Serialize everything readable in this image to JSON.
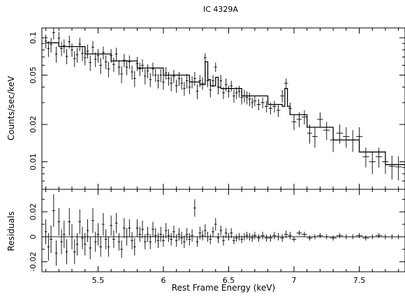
{
  "title": "IC 4329A",
  "chart_data": [
    {
      "panel": "spectrum",
      "type": "scatter",
      "title": "IC 4329A",
      "xlabel": "Rest Frame Energy (keV)",
      "ylabel": "Counts/sec/keV",
      "xlim": [
        5.07,
        7.85
      ],
      "ylim": [
        0.006,
        0.12
      ],
      "yscale": "log",
      "yticks": [
        0.01,
        0.02,
        0.05,
        0.1
      ],
      "ytick_labels": [
        "0.01",
        "0.02",
        "0.05",
        "0.1"
      ],
      "series": [
        {
          "name": "data",
          "x": [
            5.1,
            5.12,
            5.14,
            5.16,
            5.18,
            5.2,
            5.22,
            5.24,
            5.26,
            5.28,
            5.3,
            5.32,
            5.34,
            5.36,
            5.38,
            5.4,
            5.42,
            5.44,
            5.46,
            5.48,
            5.5,
            5.52,
            5.54,
            5.56,
            5.58,
            5.6,
            5.62,
            5.64,
            5.66,
            5.68,
            5.7,
            5.72,
            5.74,
            5.76,
            5.78,
            5.8,
            5.82,
            5.84,
            5.86,
            5.88,
            5.9,
            5.92,
            5.94,
            5.96,
            5.98,
            6.0,
            6.02,
            6.04,
            6.06,
            6.08,
            6.1,
            6.12,
            6.14,
            6.16,
            6.18,
            6.2,
            6.22,
            6.24,
            6.26,
            6.28,
            6.3,
            6.32,
            6.34,
            6.36,
            6.38,
            6.4,
            6.42,
            6.44,
            6.46,
            6.48,
            6.5,
            6.52,
            6.54,
            6.56,
            6.58,
            6.6,
            6.62,
            6.64,
            6.66,
            6.68,
            6.7,
            6.73,
            6.76,
            6.79,
            6.82,
            6.85,
            6.88,
            6.91,
            6.94,
            6.97,
            7.0,
            7.04,
            7.08,
            7.12,
            7.16,
            7.2,
            7.25,
            7.3,
            7.35,
            7.4,
            7.45,
            7.5,
            7.55,
            7.6,
            7.65,
            7.7,
            7.75,
            7.8
          ],
          "y": [
            0.094,
            0.082,
            0.088,
            0.11,
            0.074,
            0.099,
            0.082,
            0.086,
            0.071,
            0.093,
            0.08,
            0.068,
            0.073,
            0.089,
            0.075,
            0.069,
            0.078,
            0.063,
            0.084,
            0.067,
            0.072,
            0.06,
            0.076,
            0.064,
            0.056,
            0.072,
            0.061,
            0.074,
            0.058,
            0.051,
            0.066,
            0.058,
            0.064,
            0.053,
            0.047,
            0.062,
            0.056,
            0.06,
            0.049,
            0.054,
            0.046,
            0.056,
            0.05,
            0.045,
            0.05,
            0.044,
            0.052,
            0.047,
            0.043,
            0.049,
            0.041,
            0.047,
            0.043,
            0.039,
            0.045,
            0.04,
            0.044,
            0.047,
            0.037,
            0.045,
            0.043,
            0.069,
            0.045,
            0.038,
            0.045,
            0.058,
            0.04,
            0.045,
            0.036,
            0.042,
            0.037,
            0.041,
            0.034,
            0.036,
            0.037,
            0.033,
            0.034,
            0.033,
            0.032,
            0.03,
            0.031,
            0.029,
            0.03,
            0.028,
            0.027,
            0.028,
            0.026,
            0.034,
            0.043,
            0.027,
            0.021,
            0.022,
            0.023,
            0.017,
            0.016,
            0.022,
            0.018,
            0.015,
            0.017,
            0.016,
            0.015,
            0.016,
            0.011,
            0.01,
            0.011,
            0.01,
            0.0092,
            0.0091
          ],
          "yerr": [
            0.012,
            0.012,
            0.012,
            0.013,
            0.011,
            0.012,
            0.011,
            0.011,
            0.01,
            0.011,
            0.01,
            0.01,
            0.01,
            0.011,
            0.01,
            0.009,
            0.01,
            0.009,
            0.01,
            0.009,
            0.009,
            0.009,
            0.009,
            0.008,
            0.008,
            0.009,
            0.008,
            0.009,
            0.008,
            0.008,
            0.008,
            0.008,
            0.008,
            0.007,
            0.007,
            0.008,
            0.007,
            0.007,
            0.007,
            0.007,
            0.006,
            0.007,
            0.006,
            0.006,
            0.006,
            0.006,
            0.006,
            0.006,
            0.006,
            0.006,
            0.005,
            0.006,
            0.005,
            0.005,
            0.006,
            0.005,
            0.005,
            0.006,
            0.005,
            0.005,
            0.005,
            0.006,
            0.005,
            0.005,
            0.005,
            0.005,
            0.005,
            0.005,
            0.004,
            0.005,
            0.004,
            0.004,
            0.004,
            0.004,
            0.004,
            0.004,
            0.004,
            0.004,
            0.004,
            0.003,
            0.003,
            0.003,
            0.003,
            0.003,
            0.003,
            0.003,
            0.003,
            0.004,
            0.004,
            0.003,
            0.003,
            0.003,
            0.003,
            0.003,
            0.003,
            0.003,
            0.003,
            0.003,
            0.003,
            0.003,
            0.003,
            0.003,
            0.002,
            0.002,
            0.002,
            0.002,
            0.002,
            0.002
          ]
        }
      ],
      "model_line": {
        "x": [
          5.1,
          5.2,
          5.4,
          5.6,
          5.8,
          6.0,
          6.2,
          6.28,
          6.3,
          6.32,
          6.34,
          6.36,
          6.38,
          6.4,
          6.42,
          6.44,
          6.6,
          6.8,
          6.91,
          6.93,
          6.95,
          6.97,
          7.1,
          7.3,
          7.5,
          7.7,
          7.85
        ],
        "y": [
          0.091,
          0.085,
          0.074,
          0.065,
          0.057,
          0.05,
          0.044,
          0.042,
          0.042,
          0.064,
          0.046,
          0.041,
          0.041,
          0.048,
          0.04,
          0.039,
          0.034,
          0.029,
          0.028,
          0.039,
          0.028,
          0.024,
          0.019,
          0.015,
          0.012,
          0.0095,
          0.0085
        ]
      }
    },
    {
      "panel": "residuals",
      "type": "scatter",
      "xlabel": "Rest Frame Energy (keV)",
      "ylabel": "Residuals",
      "xlim": [
        5.07,
        7.85
      ],
      "ylim": [
        -0.028,
        0.038
      ],
      "xticks": [
        5.5,
        6,
        6.5,
        7,
        7.5
      ],
      "xtick_labels": [
        "5.5",
        "6",
        "6.5",
        "7",
        "7.5"
      ],
      "yticks": [
        -0.02,
        0,
        0.02
      ],
      "ytick_labels": [
        "-0.02",
        "0",
        "0.02"
      ],
      "zero_line": true,
      "series": [
        {
          "name": "residuals",
          "x": [
            5.1,
            5.12,
            5.14,
            5.16,
            5.18,
            5.2,
            5.22,
            5.24,
            5.26,
            5.28,
            5.3,
            5.32,
            5.34,
            5.36,
            5.38,
            5.4,
            5.42,
            5.44,
            5.46,
            5.48,
            5.5,
            5.52,
            5.54,
            5.56,
            5.58,
            5.6,
            5.62,
            5.64,
            5.66,
            5.68,
            5.7,
            5.72,
            5.74,
            5.76,
            5.78,
            5.8,
            5.82,
            5.84,
            5.86,
            5.88,
            5.9,
            5.92,
            5.94,
            5.96,
            5.98,
            6.0,
            6.02,
            6.04,
            6.06,
            6.08,
            6.1,
            6.12,
            6.14,
            6.16,
            6.18,
            6.2,
            6.22,
            6.24,
            6.26,
            6.28,
            6.3,
            6.32,
            6.34,
            6.36,
            6.38,
            6.4,
            6.42,
            6.44,
            6.46,
            6.48,
            6.5,
            6.52,
            6.54,
            6.56,
            6.58,
            6.6,
            6.62,
            6.64,
            6.66,
            6.68,
            6.7,
            6.73,
            6.76,
            6.79,
            6.82,
            6.85,
            6.88,
            6.91,
            6.94,
            6.97,
            7.0,
            7.04,
            7.08,
            7.12,
            7.16,
            7.2,
            7.25,
            7.3,
            7.35,
            7.4,
            7.45,
            7.5,
            7.55,
            7.6,
            7.65,
            7.7,
            7.75,
            7.8
          ],
          "y": [
            0.004,
            -0.008,
            -0.002,
            0.021,
            -0.013,
            0.012,
            -0.004,
            0.002,
            -0.012,
            0.012,
            0.0,
            -0.012,
            -0.006,
            0.012,
            -0.001,
            -0.006,
            0.005,
            -0.009,
            0.013,
            -0.004,
            0.002,
            -0.008,
            0.01,
            -0.002,
            -0.008,
            0.009,
            -0.002,
            0.011,
            -0.004,
            -0.01,
            0.007,
            0.0,
            0.007,
            -0.003,
            -0.008,
            0.007,
            0.002,
            0.006,
            -0.004,
            0.002,
            -0.004,
            0.006,
            0.001,
            -0.003,
            0.002,
            -0.003,
            0.005,
            0.001,
            -0.002,
            0.004,
            -0.003,
            0.002,
            -0.001,
            -0.004,
            0.002,
            -0.002,
            0.001,
            0.023,
            -0.004,
            0.003,
            0.001,
            0.005,
            0.0,
            -0.002,
            0.004,
            0.01,
            -0.001,
            0.005,
            -0.003,
            0.003,
            0.0,
            0.003,
            -0.003,
            -0.001,
            0.0,
            -0.002,
            0.0,
            0.001,
            0.0,
            -0.001,
            0.001,
            -0.001,
            0.001,
            -0.001,
            -0.001,
            0.001,
            0.0,
            -0.001,
            0.002,
            0.001,
            -0.002,
            0.003,
            0.002,
            -0.001,
            0.0,
            0.001,
            0.0,
            -0.001,
            0.001,
            0.0,
            0.0,
            0.001,
            -0.001,
            0.0,
            0.001,
            0.0,
            0.0,
            0.0
          ],
          "yerr": [
            0.01,
            0.011,
            0.011,
            0.013,
            0.01,
            0.011,
            0.01,
            0.011,
            0.01,
            0.011,
            0.01,
            0.01,
            0.009,
            0.01,
            0.009,
            0.009,
            0.009,
            0.009,
            0.01,
            0.008,
            0.009,
            0.008,
            0.009,
            0.008,
            0.008,
            0.008,
            0.007,
            0.008,
            0.007,
            0.007,
            0.008,
            0.007,
            0.007,
            0.007,
            0.007,
            0.007,
            0.006,
            0.007,
            0.006,
            0.006,
            0.006,
            0.006,
            0.006,
            0.006,
            0.006,
            0.005,
            0.006,
            0.005,
            0.005,
            0.005,
            0.005,
            0.005,
            0.005,
            0.005,
            0.005,
            0.005,
            0.005,
            0.007,
            0.004,
            0.005,
            0.004,
            0.005,
            0.004,
            0.004,
            0.004,
            0.005,
            0.004,
            0.004,
            0.004,
            0.004,
            0.003,
            0.004,
            0.003,
            0.003,
            0.003,
            0.003,
            0.003,
            0.003,
            0.003,
            0.003,
            0.003,
            0.003,
            0.003,
            0.003,
            0.003,
            0.003,
            0.003,
            0.003,
            0.003,
            0.003,
            0.002,
            0.002,
            0.002,
            0.002,
            0.002,
            0.002,
            0.002,
            0.002,
            0.002,
            0.002,
            0.002,
            0.002,
            0.002,
            0.002,
            0.002,
            0.002,
            0.002,
            0.002
          ]
        }
      ]
    }
  ]
}
